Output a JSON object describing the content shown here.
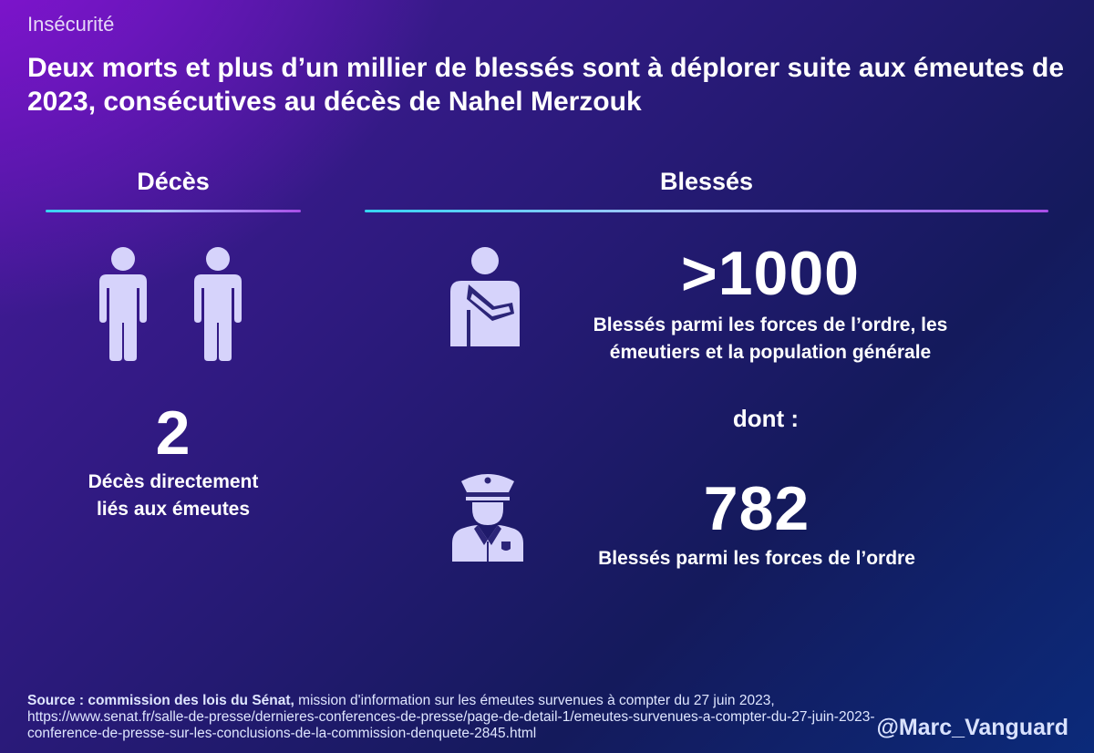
{
  "header": {
    "category": "Insécurité",
    "title": "Deux morts et plus d’un millier de blessés sont à déplorer suite aux émeutes de 2023, consécutives au décès de Nahel Merzouk"
  },
  "deaths": {
    "label": "Décès",
    "value": "2",
    "caption_line1": "Décès directement",
    "caption_line2": "liés aux émeutes",
    "icons": [
      "person-icon",
      "person-icon"
    ]
  },
  "injured": {
    "label": "Blessés",
    "total_value": ">1000",
    "total_caption_line1": "Blessés parmi les forces de l’ordre, les",
    "total_caption_line2": "émeutiers et la population générale",
    "connector": "dont :",
    "police_value": "782",
    "police_caption": "Blessés parmi les forces de l’ordre",
    "icons": [
      "injured-person-icon",
      "police-officer-icon"
    ]
  },
  "footer": {
    "source_bold": "Source : commission des lois du Sénat,",
    "source_text": " mission d'information sur les émeutes survenues à compter du 27 juin 2023, https://www.senat.fr/salle-de-presse/dernieres-conferences-de-presse/page-de-detail-1/emeutes-survenues-a-compter-du-27-juin-2023-conference-de-presse-sur-les-conclusions-de-la-commission-denquete-2845.html",
    "handle": "@Marc_Vanguard"
  },
  "colors": {
    "icon_fill": "#d6d3fb",
    "rule_start": "#35d4f2",
    "rule_end": "#a84ee8"
  }
}
